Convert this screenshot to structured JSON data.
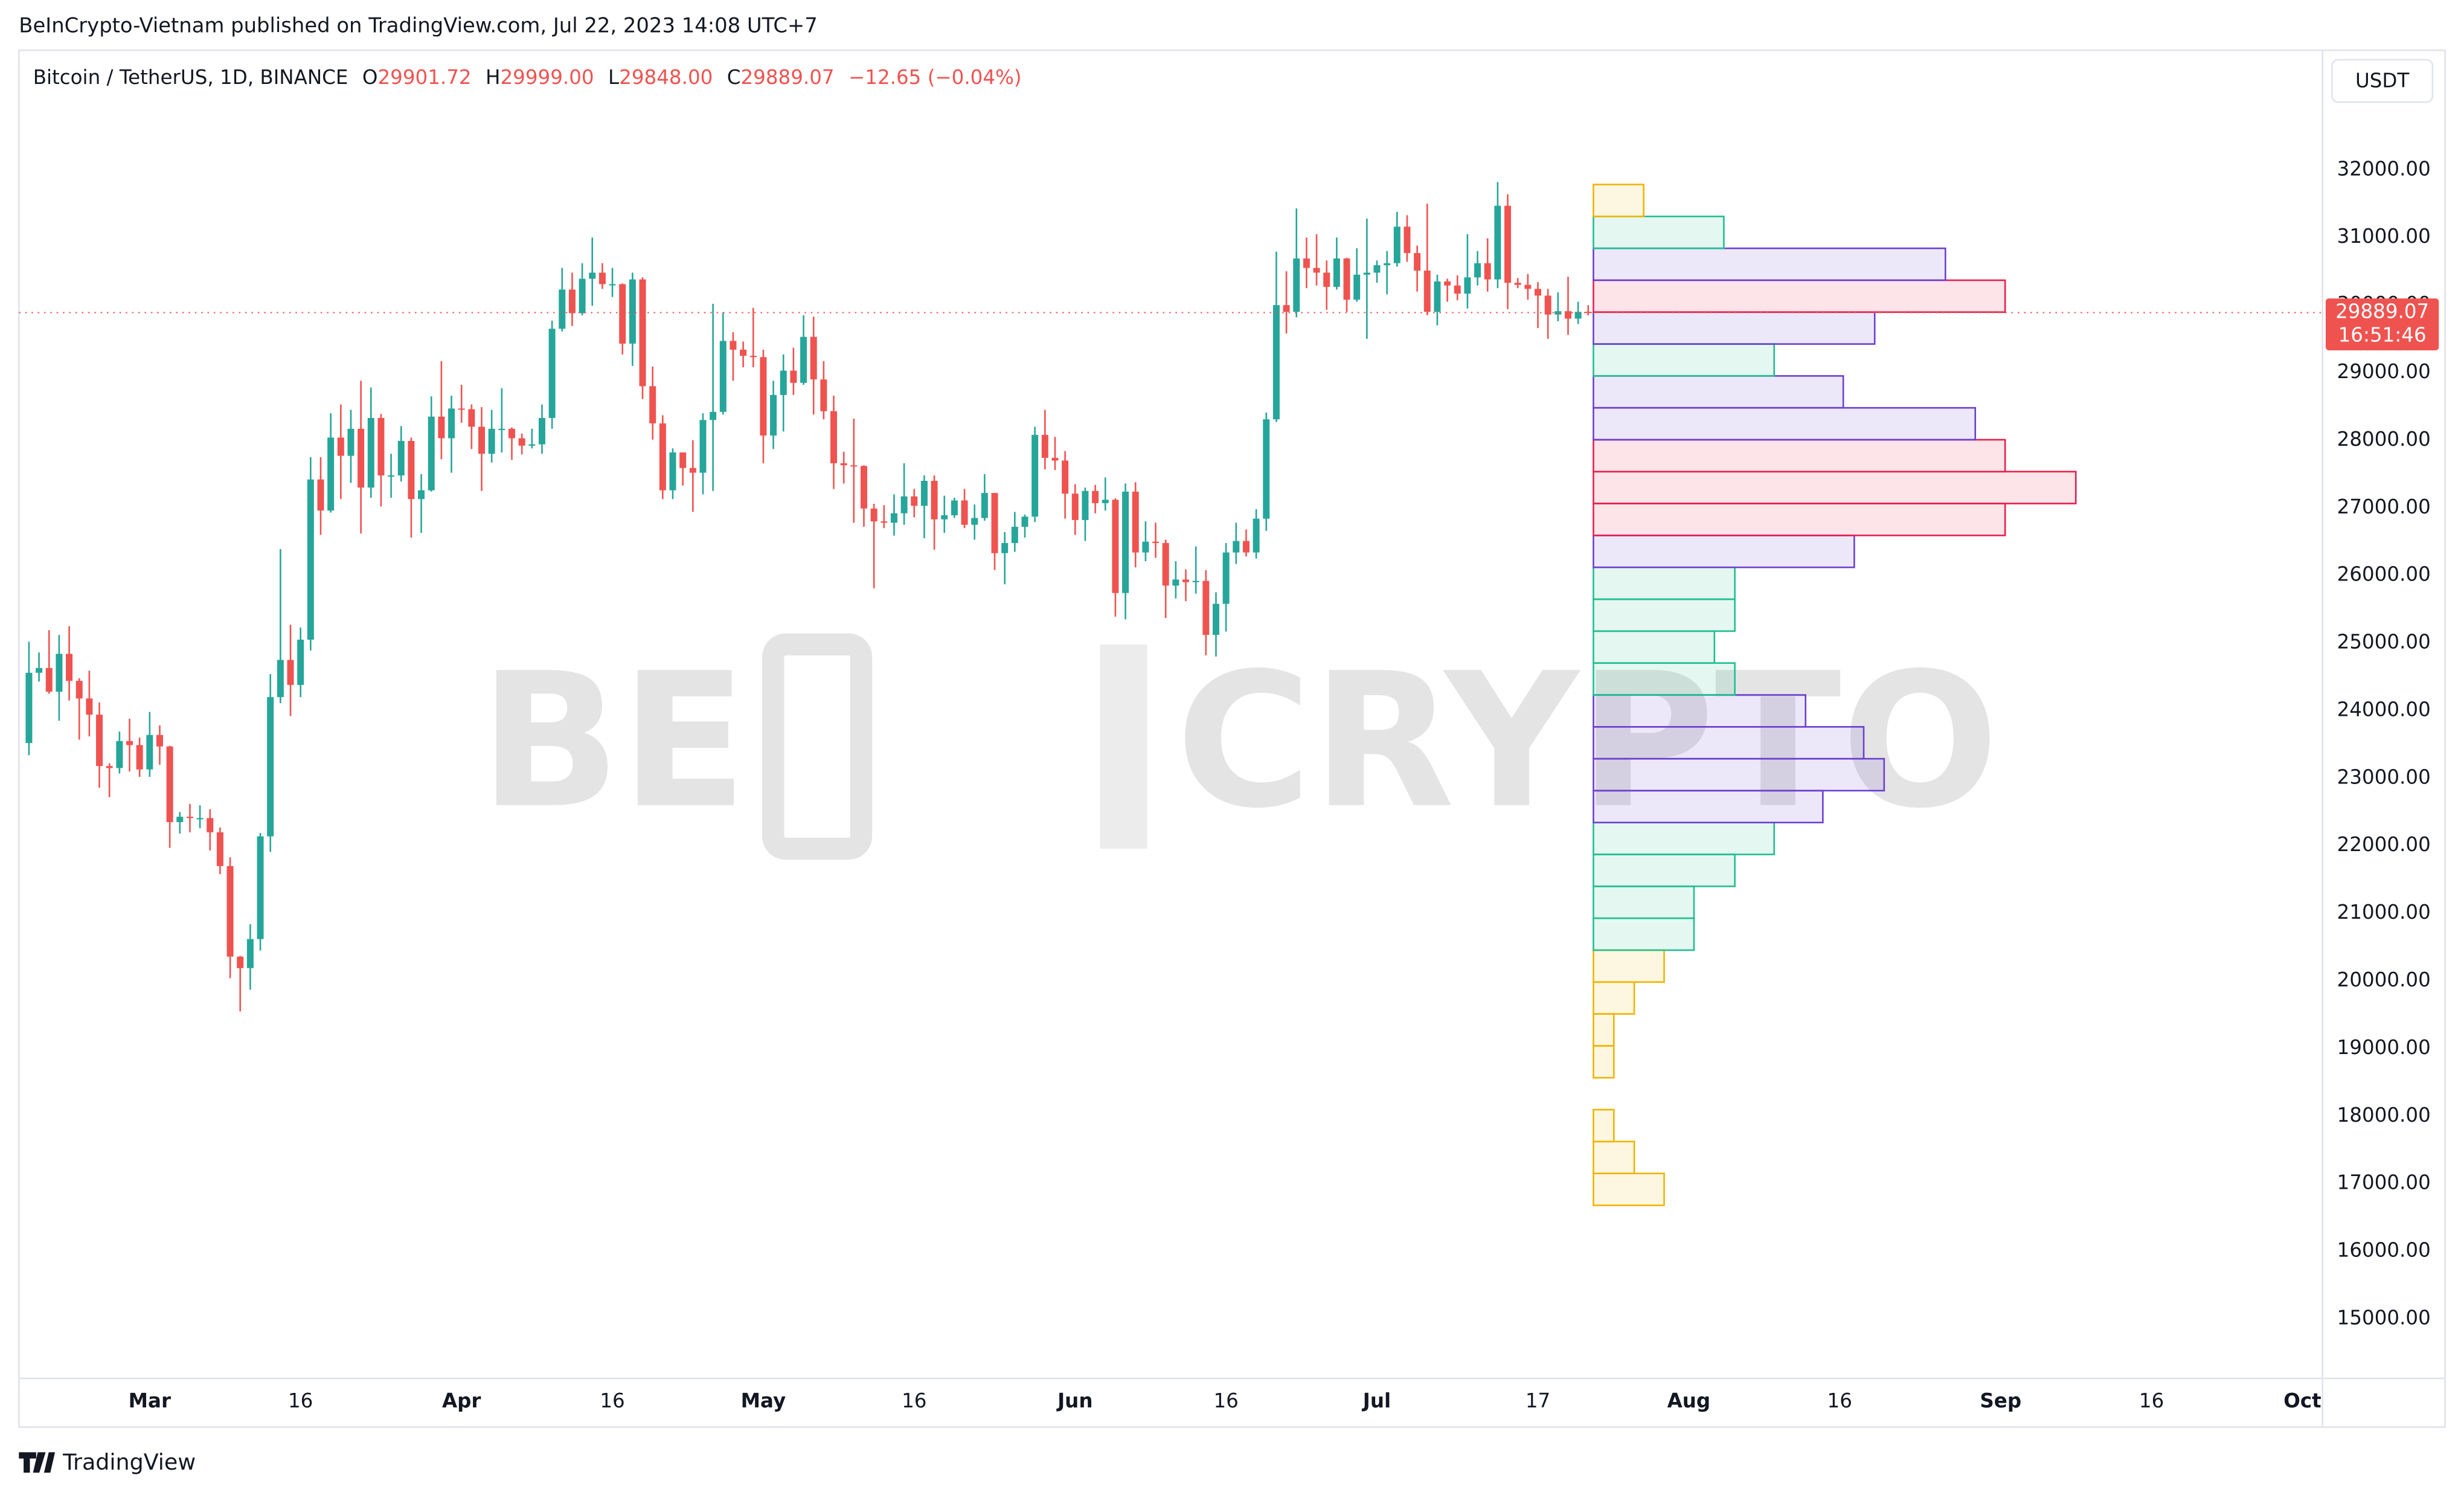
{
  "publisher": "BeInCrypto-Vietnam published on TradingView.com, Jul 22, 2023 14:08 UTC+7",
  "branding": "TradingView",
  "watermark": [
    "BE",
    "CRYPTO"
  ],
  "chart_data": {
    "type": "candlestick",
    "symbol": "Bitcoin / TetherUS, 1D, BINANCE",
    "ohlc_labels": [
      "O",
      "H",
      "L",
      "C"
    ],
    "last_value_labels": {
      "open": "29901.72",
      "high": "29999.00",
      "low": "29848.00",
      "close": "29889.07"
    },
    "change_label": "−12.65 (−0.04%)",
    "currency": "USDT",
    "countdown": "16:51:46",
    "up_color": "#26a69a",
    "down_color": "#ef5350",
    "grid": false,
    "x": [
      "02-17",
      "02-18",
      "02-19",
      "02-20",
      "02-21",
      "02-22",
      "02-23",
      "02-24",
      "02-25",
      "02-26",
      "02-27",
      "02-28",
      "03-01",
      "03-02",
      "03-03",
      "03-04",
      "03-05",
      "03-06",
      "03-07",
      "03-08",
      "03-09",
      "03-10",
      "03-11",
      "03-12",
      "03-13",
      "03-14",
      "03-15",
      "03-16",
      "03-17",
      "03-18",
      "03-19",
      "03-20",
      "03-21",
      "03-22",
      "03-23",
      "03-24",
      "03-25",
      "03-26",
      "03-27",
      "03-28",
      "03-29",
      "03-30",
      "03-31",
      "04-01",
      "04-02",
      "04-03",
      "04-04",
      "04-05",
      "04-06",
      "04-07",
      "04-08",
      "04-09",
      "04-10",
      "04-11",
      "04-12",
      "04-13",
      "04-14",
      "04-15",
      "04-16",
      "04-17",
      "04-18",
      "04-19",
      "04-20",
      "04-21",
      "04-22",
      "04-23",
      "04-24",
      "04-25",
      "04-26",
      "04-27",
      "04-28",
      "04-29",
      "04-30",
      "05-01",
      "05-02",
      "05-03",
      "05-04",
      "05-05",
      "05-06",
      "05-07",
      "05-08",
      "05-09",
      "05-10",
      "05-11",
      "05-12",
      "05-13",
      "05-14",
      "05-15",
      "05-16",
      "05-17",
      "05-18",
      "05-19",
      "05-20",
      "05-21",
      "05-22",
      "05-23",
      "05-24",
      "05-25",
      "05-26",
      "05-27",
      "05-28",
      "05-29",
      "05-30",
      "05-31",
      "06-01",
      "06-02",
      "06-03",
      "06-04",
      "06-05",
      "06-06",
      "06-07",
      "06-08",
      "06-09",
      "06-10",
      "06-11",
      "06-12",
      "06-13",
      "06-14",
      "06-15",
      "06-16",
      "06-17",
      "06-18",
      "06-19",
      "06-20",
      "06-21",
      "06-22",
      "06-23",
      "06-24",
      "06-25",
      "06-26",
      "06-27",
      "06-28",
      "06-29",
      "06-30",
      "07-01",
      "07-02",
      "07-03",
      "07-04",
      "07-05",
      "07-06",
      "07-07",
      "07-08",
      "07-09",
      "07-10",
      "07-11",
      "07-12",
      "07-13",
      "07-14",
      "07-15",
      "07-16",
      "07-17",
      "07-18",
      "07-19",
      "07-20",
      "07-21",
      "07-22"
    ],
    "open": [
      23520,
      24560,
      24630,
      24280,
      24840,
      24440,
      24180,
      23940,
      23180,
      23150,
      23550,
      23490,
      23130,
      23640,
      23470,
      22350,
      22430,
      22410,
      22410,
      22200,
      21700,
      20360,
      20190,
      20620,
      22140,
      24200,
      24750,
      24380,
      25050,
      27420,
      26960,
      28040,
      27770,
      28170,
      27300,
      28330,
      27480,
      27480,
      27990,
      27130,
      27260,
      28350,
      28030,
      28470,
      28460,
      28200,
      27800,
      28170,
      28170,
      28030,
      27920,
      27940,
      28330,
      29650,
      30230,
      29880,
      30390,
      30480,
      30310,
      30310,
      29430,
      30380,
      28800,
      28250,
      27260,
      27820,
      27590,
      27520,
      28300,
      28420,
      29470,
      29340,
      29250,
      29230,
      28070,
      28670,
      29030,
      28850,
      29530,
      28900,
      28430,
      27660,
      27630,
      27620,
      26990,
      26800,
      26780,
      26920,
      27170,
      27030,
      27400,
      26830,
      26890,
      27110,
      26750,
      26850,
      27220,
      26330,
      26480,
      26720,
      26870,
      28080,
      27740,
      27700,
      27210,
      26820,
      27250,
      27070,
      27120,
      25740,
      27240,
      26340,
      26500,
      26480,
      25850,
      25940,
      25900,
      25920,
      25120,
      25580,
      26340,
      26510,
      26340,
      26840,
      28310,
      30000,
      29900,
      30690,
      30550,
      30480,
      30270,
      30690,
      30080,
      30450,
      30480,
      30590,
      30620,
      31160,
      30770,
      30510,
      29900,
      30350,
      30290,
      30170,
      30410,
      30620,
      30380,
      31470,
      30330,
      30300,
      30240,
      30140,
      29860,
      29910,
      29800,
      29901.72
    ],
    "high": [
      25020,
      24860,
      25190,
      25120,
      25250,
      24480,
      24590,
      24120,
      23220,
      23690,
      23880,
      23600,
      23980,
      23780,
      23480,
      22500,
      22620,
      22600,
      22540,
      22270,
      21830,
      20370,
      20840,
      22190,
      24540,
      26390,
      25270,
      25230,
      27750,
      27750,
      28400,
      28530,
      28450,
      28880,
      28780,
      28390,
      27800,
      28210,
      28040,
      27500,
      28650,
      29170,
      28660,
      28820,
      28530,
      28490,
      28450,
      28770,
      28190,
      28100,
      28170,
      28530,
      29770,
      30550,
      30480,
      30620,
      31000,
      30620,
      30550,
      30320,
      30480,
      30410,
      29090,
      28370,
      27880,
      27820,
      28000,
      28400,
      30020,
      29890,
      29600,
      29460,
      29960,
      29340,
      28880,
      29270,
      29370,
      29850,
      29830,
      29170,
      28660,
      27830,
      28320,
      27630,
      27060,
      27040,
      27200,
      27660,
      27280,
      27480,
      27480,
      27180,
      27150,
      27280,
      27050,
      27500,
      27220,
      26640,
      26940,
      26900,
      28200,
      28450,
      28050,
      27840,
      27350,
      27300,
      27340,
      27450,
      27140,
      27360,
      27380,
      26800,
      26780,
      26530,
      26210,
      26090,
      26430,
      26080,
      25750,
      26480,
      26780,
      26680,
      26980,
      28410,
      30790,
      30500,
      31430,
      31000,
      31050,
      30660,
      31000,
      30700,
      30840,
      31280,
      30660,
      30800,
      31380,
      31330,
      30880,
      31500,
      30450,
      30390,
      30440,
      31050,
      30800,
      30990,
      31820,
      31640,
      30400,
      30460,
      30340,
      30240,
      30190,
      30420,
      30050,
      29999
    ],
    "low": [
      23340,
      24430,
      24250,
      23850,
      24150,
      23570,
      23620,
      22860,
      22720,
      23070,
      23100,
      23020,
      23020,
      23200,
      21970,
      22180,
      22200,
      22260,
      21930,
      21580,
      20040,
      19550,
      19870,
      20450,
      21910,
      24110,
      23920,
      24200,
      24890,
      26600,
      26930,
      27130,
      27370,
      26620,
      27150,
      27020,
      27150,
      27390,
      26560,
      26630,
      27240,
      27720,
      27520,
      28260,
      27870,
      27250,
      27670,
      27820,
      27710,
      27790,
      27880,
      27800,
      28170,
      29610,
      29690,
      29850,
      29990,
      30240,
      30120,
      29270,
      29100,
      28610,
      28010,
      27130,
      27130,
      27330,
      26940,
      27200,
      27250,
      28380,
      28880,
      29080,
      29080,
      27660,
      27870,
      28130,
      28670,
      28820,
      28380,
      28310,
      27280,
      27360,
      26780,
      26720,
      25810,
      26700,
      26590,
      26750,
      26860,
      26550,
      26380,
      26630,
      26850,
      26700,
      26530,
      26810,
      26080,
      25870,
      26350,
      26560,
      26790,
      27570,
      27560,
      26840,
      26600,
      26510,
      26920,
      26960,
      25390,
      25350,
      26120,
      26210,
      26260,
      25370,
      25660,
      25620,
      25730,
      24820,
      24800,
      25170,
      26170,
      26280,
      26250,
      26660,
      28270,
      29580,
      29820,
      30250,
      30290,
      29930,
      30230,
      29900,
      30050,
      29500,
      30330,
      30160,
      30570,
      30640,
      30200,
      29850,
      29700,
      30050,
      30070,
      29950,
      30290,
      30200,
      30250,
      29940,
      30250,
      30080,
      29660,
      29500,
      29760,
      29560,
      29720,
      29848
    ],
    "close": [
      24560,
      24630,
      24280,
      24840,
      24440,
      24180,
      23940,
      23180,
      23150,
      23550,
      23490,
      23130,
      23640,
      23470,
      22350,
      22430,
      22410,
      22410,
      22200,
      21700,
      20360,
      20190,
      20620,
      22140,
      24200,
      24750,
      24380,
      25050,
      27420,
      26960,
      28040,
      27770,
      28170,
      27300,
      28330,
      27480,
      27480,
      27990,
      27130,
      27260,
      28350,
      28030,
      28470,
      28460,
      28200,
      27800,
      28170,
      28170,
      28030,
      27920,
      27940,
      28330,
      29650,
      30230,
      29880,
      30390,
      30480,
      30310,
      30310,
      29430,
      30380,
      28800,
      28250,
      27260,
      27820,
      27590,
      27520,
      28300,
      28420,
      29470,
      29340,
      29250,
      29230,
      28070,
      28670,
      29030,
      28850,
      29530,
      28900,
      28430,
      27660,
      27630,
      27620,
      26990,
      26800,
      26780,
      26920,
      27170,
      27030,
      27400,
      26830,
      26890,
      27110,
      26750,
      26850,
      27220,
      26330,
      26480,
      26720,
      26870,
      28080,
      27740,
      27700,
      27210,
      26820,
      27250,
      27070,
      27120,
      25740,
      27240,
      26340,
      26500,
      26480,
      25850,
      25940,
      25900,
      25920,
      25120,
      25580,
      26340,
      26510,
      26340,
      26840,
      28310,
      30000,
      29900,
      30690,
      30550,
      30480,
      30270,
      30690,
      30080,
      30450,
      30480,
      30590,
      30620,
      31160,
      30770,
      30510,
      29900,
      30350,
      30290,
      30170,
      30410,
      30620,
      30380,
      31470,
      30330,
      30300,
      30240,
      30140,
      29860,
      29910,
      29800,
      29900,
      29889.07
    ],
    "xlim": [
      "02-16",
      "10-03"
    ],
    "xticks": [
      {
        "value": "03-01",
        "label": "Mar"
      },
      {
        "value": "03-16",
        "label": "16"
      },
      {
        "value": "04-01",
        "label": "Apr"
      },
      {
        "value": "04-16",
        "label": "16"
      },
      {
        "value": "05-01",
        "label": "May"
      },
      {
        "value": "05-16",
        "label": "16"
      },
      {
        "value": "06-01",
        "label": "Jun"
      },
      {
        "value": "06-16",
        "label": "16"
      },
      {
        "value": "07-01",
        "label": "Jul"
      },
      {
        "value": "07-17",
        "label": "17"
      },
      {
        "value": "08-01",
        "label": "Aug"
      },
      {
        "value": "08-16",
        "label": "16"
      },
      {
        "value": "09-01",
        "label": "Sep"
      },
      {
        "value": "09-16",
        "label": "16"
      },
      {
        "value": "10-01",
        "label": "Oct"
      }
    ],
    "ylim": [
      14120,
      33770
    ],
    "yticks": [
      {
        "value": 15000,
        "label": "15000.00"
      },
      {
        "value": 16000,
        "label": "16000.00"
      },
      {
        "value": 17000,
        "label": "17000.00"
      },
      {
        "value": 18000,
        "label": "18000.00"
      },
      {
        "value": 19000,
        "label": "19000.00"
      },
      {
        "value": 20000,
        "label": "20000.00"
      },
      {
        "value": 21000,
        "label": "21000.00"
      },
      {
        "value": 22000,
        "label": "22000.00"
      },
      {
        "value": 23000,
        "label": "23000.00"
      },
      {
        "value": 24000,
        "label": "24000.00"
      },
      {
        "value": 25000,
        "label": "25000.00"
      },
      {
        "value": 26000,
        "label": "26000.00"
      },
      {
        "value": 27000,
        "label": "27000.00"
      },
      {
        "value": 28000,
        "label": "28000.00"
      },
      {
        "value": 29000,
        "label": "29000.00"
      },
      {
        "value": 30000,
        "label": "30000.00"
      },
      {
        "value": 31000,
        "label": "31000.00"
      },
      {
        "value": 32000,
        "label": "32000.00"
      }
    ],
    "volume_profile": {
      "bins": [
        16680,
        17152,
        17624,
        18096,
        18568,
        19040,
        19512,
        19984,
        20456,
        20928,
        21400,
        21872,
        22344,
        22816,
        23288,
        23760,
        24232,
        24704,
        25176,
        25648,
        26120,
        26592,
        27064,
        27536,
        28008,
        28480,
        28952,
        29424,
        29896,
        30368,
        30840,
        31312,
        31784
      ],
      "volumes": [
        45,
        26,
        13,
        0,
        13,
        13,
        26,
        45,
        64,
        64,
        90,
        115,
        146,
        185,
        172,
        135,
        90,
        77,
        90,
        90,
        166,
        262,
        307,
        262,
        243,
        159,
        115,
        179,
        262,
        224,
        83,
        32
      ],
      "colors": [
        "#f0b400",
        "#f0b400",
        "#f0b400",
        "#f0b400",
        "#f0b400",
        "#f0b400",
        "#f0b400",
        "#f0b400",
        "#1fbf8f",
        "#1fbf8f",
        "#1fbf8f",
        "#1fbf8f",
        "#6a3fd1",
        "#6a3fd1",
        "#6a3fd1",
        "#6a3fd1",
        "#1fbf8f",
        "#1fbf8f",
        "#1fbf8f",
        "#1fbf8f",
        "#6a3fd1",
        "#e91e4c",
        "#e91e4c",
        "#e91e4c",
        "#6a3fd1",
        "#6a3fd1",
        "#1fbf8f",
        "#6a3fd1",
        "#e91e4c",
        "#6a3fd1",
        "#1fbf8f",
        "#f0b400"
      ]
    }
  }
}
